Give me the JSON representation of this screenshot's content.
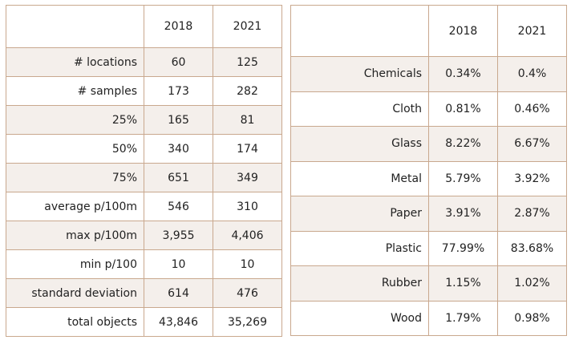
{
  "summary_table": {
    "columns": [
      "",
      "2018",
      "2021"
    ],
    "rows": [
      {
        "label": "# locations",
        "v2018": "60",
        "v2021": "125"
      },
      {
        "label": "# samples",
        "v2018": "173",
        "v2021": "282"
      },
      {
        "label": "25%",
        "v2018": "165",
        "v2021": "81"
      },
      {
        "label": "50%",
        "v2018": "340",
        "v2021": "174"
      },
      {
        "label": "75%",
        "v2018": "651",
        "v2021": "349"
      },
      {
        "label": "average p/100m",
        "v2018": "546",
        "v2021": "310"
      },
      {
        "label": "max p/100m",
        "v2018": "3,955",
        "v2021": "4,406"
      },
      {
        "label": "min p/100",
        "v2018": "10",
        "v2021": "10"
      },
      {
        "label": "standard deviation",
        "v2018": "614",
        "v2021": "476"
      },
      {
        "label": "total objects",
        "v2018": "43,846",
        "v2021": "35,269"
      }
    ]
  },
  "material_table": {
    "columns": [
      "",
      "2018",
      "2021"
    ],
    "rows": [
      {
        "label": "Chemicals",
        "v2018": "0.34%",
        "v2021": "0.4%"
      },
      {
        "label": "Cloth",
        "v2018": "0.81%",
        "v2021": "0.46%"
      },
      {
        "label": "Glass",
        "v2018": "8.22%",
        "v2021": "6.67%"
      },
      {
        "label": "Metal",
        "v2018": "5.79%",
        "v2021": "3.92%"
      },
      {
        "label": "Paper",
        "v2018": "3.91%",
        "v2021": "2.87%"
      },
      {
        "label": "Plastic",
        "v2018": "77.99%",
        "v2021": "83.68%"
      },
      {
        "label": "Rubber",
        "v2018": "1.15%",
        "v2021": "1.02%"
      },
      {
        "label": "Wood",
        "v2018": "1.79%",
        "v2021": "0.98%"
      }
    ]
  }
}
